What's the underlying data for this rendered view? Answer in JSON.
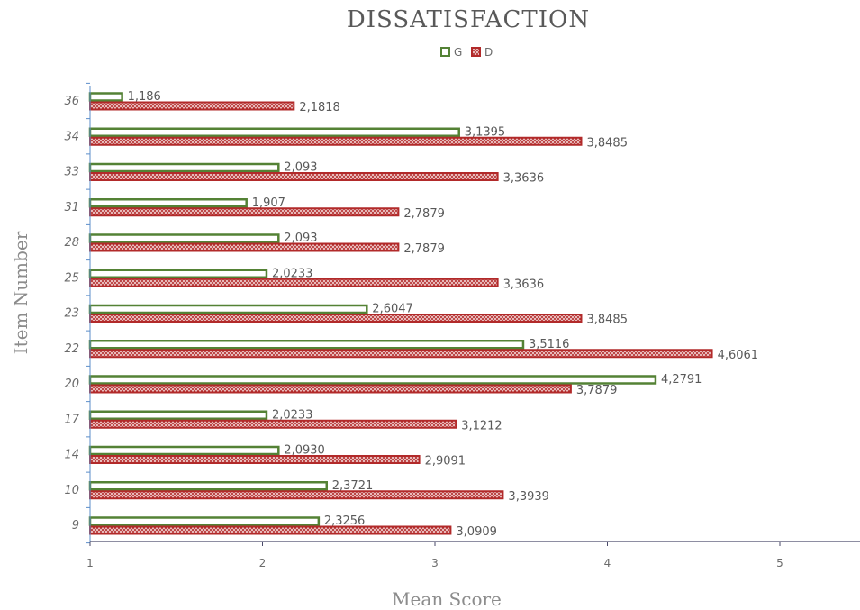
{
  "chart_data": {
    "type": "bar",
    "orientation": "horizontal",
    "title": "DISSATISFACTION",
    "xlabel": "Mean Score",
    "ylabel": "Item Number",
    "xlim": [
      1,
      5.5
    ],
    "x_ticks": [
      "1",
      "2",
      "3",
      "4",
      "5"
    ],
    "x_tick_values": [
      1,
      2,
      3,
      4,
      5
    ],
    "legend_position": "top",
    "categories": [
      "36",
      "34",
      "33",
      "31",
      "28",
      "25",
      "23",
      "22",
      "20",
      "17",
      "14",
      "10",
      "9"
    ],
    "series": [
      {
        "name": "G",
        "color": "#548235",
        "fill": "hollow",
        "values": [
          1.186,
          3.1395,
          2.093,
          1.907,
          2.093,
          2.0233,
          2.6047,
          3.5116,
          4.2791,
          2.0233,
          2.093,
          2.3721,
          2.3256
        ],
        "labels": [
          "1,186",
          "3,1395",
          "2,093",
          "1,907",
          "2,093",
          "2,0233",
          "2,6047",
          "3,5116",
          "4,2791",
          "2,0233",
          "2,0930",
          "2,3721",
          "2,3256"
        ]
      },
      {
        "name": "D",
        "color": "#b22a2a",
        "fill": "crosshatch",
        "values": [
          2.1818,
          3.8485,
          3.3636,
          2.7879,
          2.7879,
          3.3636,
          3.8485,
          4.6061,
          3.7879,
          3.1212,
          2.9091,
          3.3939,
          3.0909
        ],
        "labels": [
          "2,1818",
          "3,8485",
          "3,3636",
          "2,7879",
          "2,7879",
          "3,3636",
          "3,8485",
          "4,6061",
          "3,7879",
          "3,1212",
          "2,9091",
          "3,3939",
          "3,0909"
        ]
      }
    ]
  }
}
